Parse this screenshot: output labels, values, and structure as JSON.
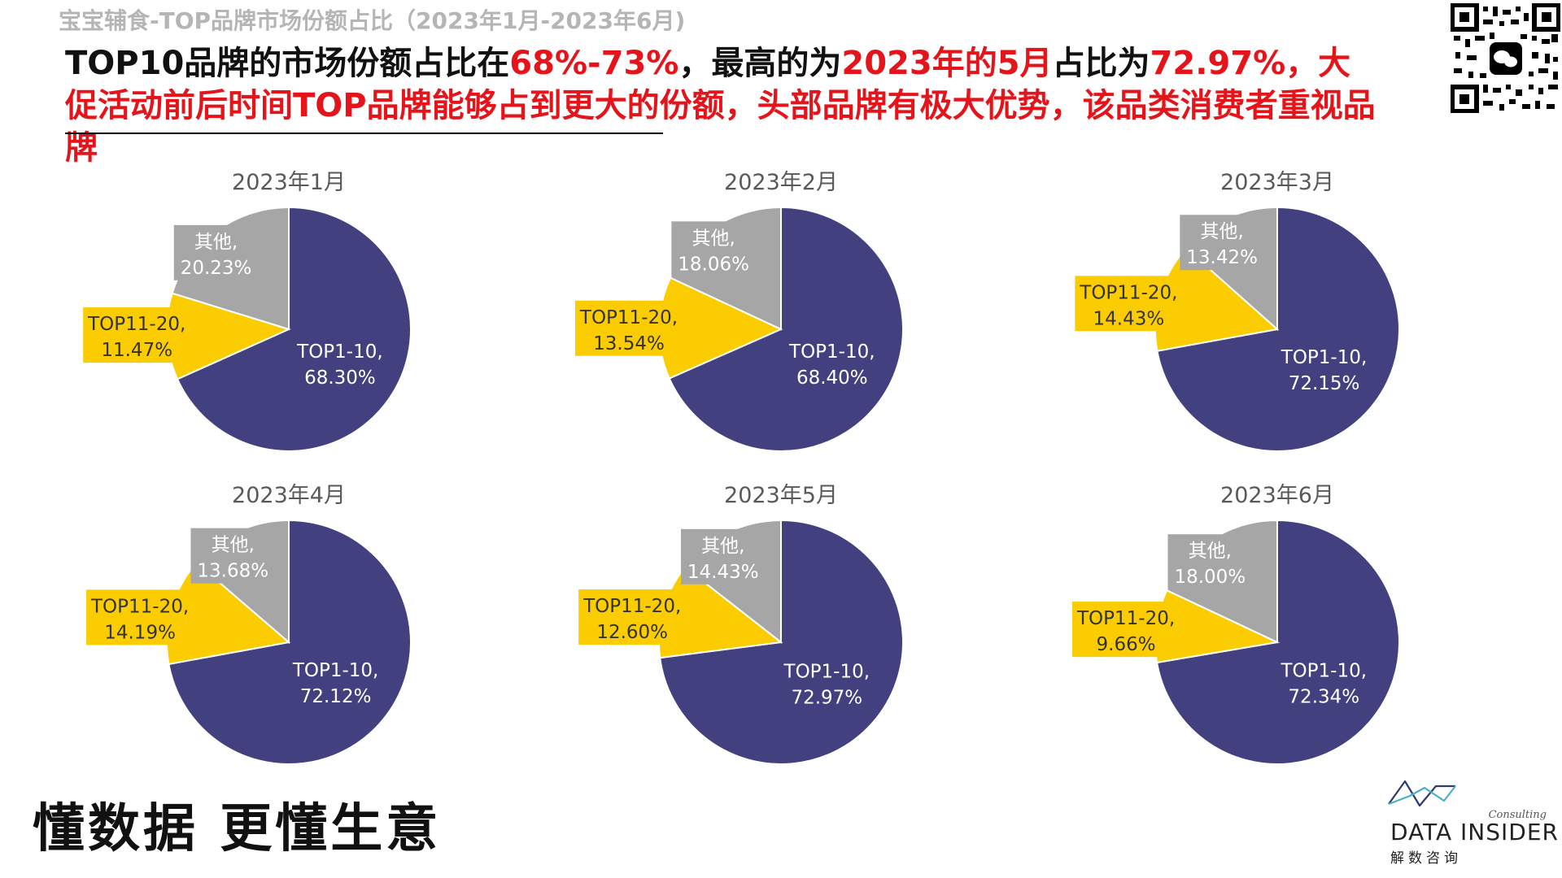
{
  "header": {
    "title": "宝宝辅食-TOP品牌市场份额占比（2023年1月-2023年6月)"
  },
  "headline": {
    "p1": "TOP10品牌的市场份额占比在",
    "p2": "68%-73%",
    "p3": "，最高的为",
    "p4": "2023年的5月",
    "p5": "占比为",
    "p6": "72.97%，大促活动前后时间TOP品牌能够占到更大的份额，头部品牌有极大优势，该品类消费者重视品牌"
  },
  "footer": {
    "slogan": "懂数据 更懂生意",
    "logo_name": "DATA INSIDER",
    "logo_consulting": "Consulting",
    "logo_cn": "解数咨询"
  },
  "colors": {
    "top1_10": "#43407f",
    "top11_20": "#fbcc00",
    "other": "#a6a6a6",
    "highlight": "#e5141b"
  },
  "chart_data": [
    {
      "type": "pie",
      "title": "2023年1月",
      "series": [
        {
          "name": "TOP1-10",
          "value": 68.3,
          "label": "68.30%"
        },
        {
          "name": "TOP11-20",
          "value": 11.47,
          "label": "11.47%"
        },
        {
          "name": "其他",
          "value": 20.23,
          "label": "20.23%"
        }
      ]
    },
    {
      "type": "pie",
      "title": "2023年2月",
      "series": [
        {
          "name": "TOP1-10",
          "value": 68.4,
          "label": "68.40%"
        },
        {
          "name": "TOP11-20",
          "value": 13.54,
          "label": "13.54%"
        },
        {
          "name": "其他",
          "value": 18.06,
          "label": "18.06%"
        }
      ]
    },
    {
      "type": "pie",
      "title": "2023年3月",
      "series": [
        {
          "name": "TOP1-10",
          "value": 72.15,
          "label": "72.15%"
        },
        {
          "name": "TOP11-20",
          "value": 14.43,
          "label": "14.43%"
        },
        {
          "name": "其他",
          "value": 13.42,
          "label": "13.42%"
        }
      ]
    },
    {
      "type": "pie",
      "title": "2023年4月",
      "series": [
        {
          "name": "TOP1-10",
          "value": 72.12,
          "label": "72.12%"
        },
        {
          "name": "TOP11-20",
          "value": 14.19,
          "label": "14.19%"
        },
        {
          "name": "其他",
          "value": 13.68,
          "label": "13.68%"
        }
      ]
    },
    {
      "type": "pie",
      "title": "2023年5月",
      "series": [
        {
          "name": "TOP1-10",
          "value": 72.97,
          "label": "72.97%"
        },
        {
          "name": "TOP11-20",
          "value": 12.6,
          "label": "12.60%"
        },
        {
          "name": "其他",
          "value": 14.43,
          "label": "14.43%"
        }
      ]
    },
    {
      "type": "pie",
      "title": "2023年6月",
      "series": [
        {
          "name": "TOP1-10",
          "value": 72.34,
          "label": "72.34%"
        },
        {
          "name": "TOP11-20",
          "value": 9.66,
          "label": "9.66%"
        },
        {
          "name": "其他",
          "value": 18.0,
          "label": "18.00%"
        }
      ]
    }
  ]
}
